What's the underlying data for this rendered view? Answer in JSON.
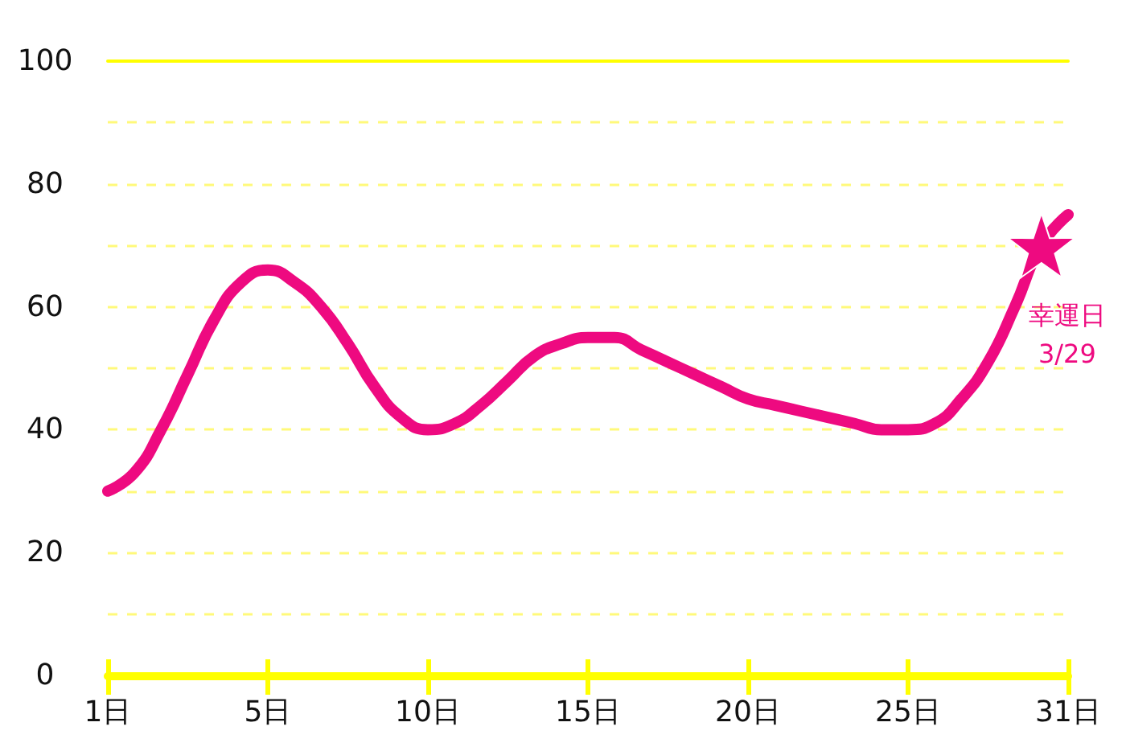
{
  "chart_data": {
    "type": "line",
    "categories": [
      "1日",
      null,
      null,
      null,
      null,
      null,
      "5日",
      null,
      null,
      null,
      null,
      null,
      "10日",
      null,
      null,
      null,
      null,
      null,
      "15日",
      null,
      null,
      null,
      null,
      null,
      "20日",
      null,
      null,
      null,
      null,
      null,
      "25日",
      null,
      null,
      null,
      null,
      null,
      "31日"
    ],
    "series": [
      {
        "color": "#ee0a80",
        "marker": "none",
        "values": [
          30,
          33,
          40,
          49,
          58,
          64,
          66,
          64,
          60,
          54,
          47,
          42,
          40,
          41,
          44,
          48,
          52,
          54,
          55,
          55,
          53,
          51,
          49,
          47,
          45,
          44,
          43,
          42,
          41,
          40,
          40,
          41,
          45,
          51,
          60,
          70,
          75
        ]
      },
      {
        "type": "scatter",
        "color": "#ee0a80",
        "marker": "star",
        "values": [
          null,
          null,
          null,
          null,
          null,
          null,
          null,
          null,
          null,
          null,
          null,
          null,
          null,
          null,
          null,
          null,
          null,
          null,
          null,
          null,
          null,
          null,
          null,
          null,
          null,
          null,
          null,
          null,
          null,
          null,
          null,
          null,
          null,
          null,
          null,
          70,
          null
        ]
      }
    ],
    "ylim": [
      0,
      100
    ],
    "yticks": [
      0,
      {
        "value": 10,
        "label": null
      },
      20,
      {
        "value": 30,
        "label": null
      },
      40,
      {
        "value": 50,
        "label": null
      },
      60,
      {
        "value": 70,
        "label": null
      },
      80,
      {
        "value": 90,
        "label": null
      },
      100
    ],
    "grid": "y",
    "line_style": "solid",
    "annotations": [
      "幸運日\n3/29"
    ]
  }
}
